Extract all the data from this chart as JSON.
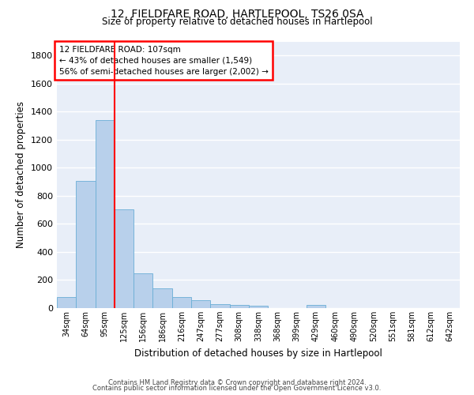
{
  "title_line1": "12, FIELDFARE ROAD, HARTLEPOOL, TS26 0SA",
  "title_line2": "Size of property relative to detached houses in Hartlepool",
  "xlabel": "Distribution of detached houses by size in Hartlepool",
  "ylabel": "Number of detached properties",
  "categories": [
    "34sqm",
    "64sqm",
    "95sqm",
    "125sqm",
    "156sqm",
    "186sqm",
    "216sqm",
    "247sqm",
    "277sqm",
    "308sqm",
    "338sqm",
    "368sqm",
    "399sqm",
    "429sqm",
    "460sqm",
    "490sqm",
    "520sqm",
    "551sqm",
    "581sqm",
    "612sqm",
    "642sqm"
  ],
  "values": [
    80,
    905,
    1340,
    705,
    245,
    140,
    80,
    55,
    30,
    25,
    15,
    0,
    0,
    20,
    0,
    0,
    0,
    0,
    0,
    0,
    0
  ],
  "bar_color": "#b8d0eb",
  "bar_edge_color": "#6aaed6",
  "vline_x_index": 2,
  "vline_color": "red",
  "annotation_text": "12 FIELDFARE ROAD: 107sqm\n← 43% of detached houses are smaller (1,549)\n56% of semi-detached houses are larger (2,002) →",
  "annotation_box_color": "red",
  "ylim": [
    0,
    1900
  ],
  "yticks": [
    0,
    200,
    400,
    600,
    800,
    1000,
    1200,
    1400,
    1600,
    1800
  ],
  "background_color": "#e8eef8",
  "grid_color": "#ffffff",
  "footer_line1": "Contains HM Land Registry data © Crown copyright and database right 2024.",
  "footer_line2": "Contains public sector information licensed under the Open Government Licence v3.0."
}
